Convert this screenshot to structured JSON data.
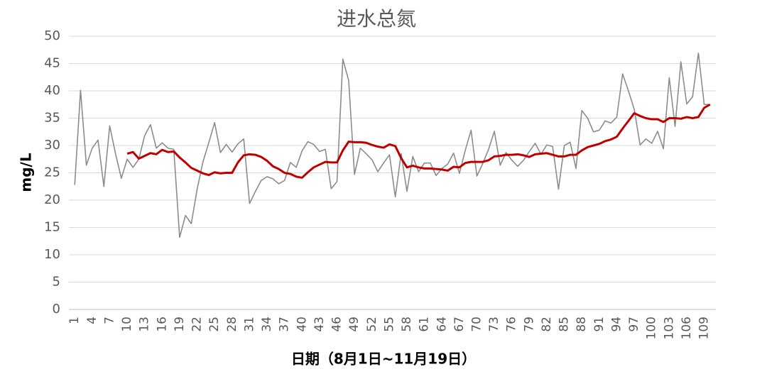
{
  "chart_data": {
    "type": "line",
    "title": "进水总氮",
    "xlabel": "日期（8月1日~11月19日）",
    "ylabel": "mg/L",
    "x": [
      1,
      2,
      3,
      4,
      5,
      6,
      7,
      8,
      9,
      10,
      11,
      12,
      13,
      14,
      15,
      16,
      17,
      18,
      19,
      20,
      21,
      22,
      23,
      24,
      25,
      26,
      27,
      28,
      29,
      30,
      31,
      32,
      33,
      34,
      35,
      36,
      37,
      38,
      39,
      40,
      41,
      42,
      43,
      44,
      45,
      46,
      47,
      48,
      49,
      50,
      51,
      52,
      53,
      54,
      55,
      56,
      57,
      58,
      59,
      60,
      61,
      62,
      63,
      64,
      65,
      66,
      67,
      68,
      69,
      70,
      71,
      72,
      73,
      74,
      75,
      76,
      77,
      78,
      79,
      80,
      81,
      82,
      83,
      84,
      85,
      86,
      87,
      88,
      89,
      90,
      91,
      92,
      93,
      94,
      95,
      96,
      97,
      98,
      99,
      100,
      101,
      102,
      103,
      104,
      105,
      106,
      107,
      108,
      109,
      110
    ],
    "series": [
      {
        "color": "#8c8c8c",
        "width": 1.6,
        "values": [
          22.8,
          40.1,
          26.4,
          29.5,
          31,
          22.5,
          33.6,
          28.5,
          24,
          27.5,
          26,
          27.5,
          31.8,
          33.8,
          29.5,
          30.5,
          29.5,
          29.3,
          13.2,
          17.2,
          15.7,
          22,
          27,
          30.5,
          34.2,
          28.7,
          30.2,
          28.8,
          30.3,
          31.2,
          19.4,
          21.6,
          23.6,
          24.3,
          23.9,
          23,
          23.6,
          26.9,
          26,
          29,
          30.7,
          30.2,
          28.9,
          29.3,
          22.1,
          23.4,
          45.8,
          41.9,
          24.7,
          29.5,
          28.5,
          27.4,
          25.2,
          26.8,
          28.3,
          20.6,
          28.5,
          21.6,
          28,
          25.2,
          26.8,
          26.8,
          24.5,
          25.8,
          26.6,
          28.6,
          24.9,
          29.1,
          32.8,
          24.4,
          26.7,
          29.3,
          32.6,
          26.4,
          28.7,
          27.3,
          26.2,
          27.3,
          28.9,
          30.4,
          28.4,
          30.1,
          29.8,
          22,
          30,
          30.6,
          25.8,
          36.4,
          35,
          32.5,
          32.8,
          34.5,
          34.1,
          35.2,
          43.1,
          40,
          36.6,
          30.1,
          31.2,
          30.4,
          32.6,
          29.4,
          42.4,
          33.5,
          45.3,
          37.6,
          38.9,
          46.9,
          37.5,
          37.5
        ]
      },
      {
        "color": "#c00000",
        "width": 3,
        "values": [
          null,
          null,
          null,
          null,
          null,
          null,
          null,
          null,
          null,
          28.5,
          28.8,
          27.6,
          28.1,
          28.6,
          28.4,
          29.2,
          28.8,
          28.9,
          27.8,
          26.9,
          25.9,
          25.4,
          24.9,
          24.6,
          25.1,
          24.9,
          25,
          25,
          26.9,
          28.2,
          28.4,
          28.3,
          27.9,
          27.2,
          26.2,
          25.7,
          25,
          24.8,
          24.3,
          24.1,
          25.1,
          26,
          26.5,
          27,
          26.9,
          26.9,
          29.1,
          30.7,
          30.6,
          30.6,
          30.5,
          30.1,
          29.8,
          29.6,
          30.2,
          29.9,
          27.7,
          26,
          26.3,
          26,
          25.8,
          25.8,
          25.7,
          25.6,
          25.4,
          26.1,
          26,
          26.8,
          27,
          27,
          27,
          27.3,
          28,
          28.1,
          28.3,
          28.3,
          28.4,
          28.2,
          27.9,
          28.4,
          28.5,
          28.6,
          28.3,
          28,
          28,
          28.3,
          28.3,
          29.1,
          29.7,
          30,
          30.3,
          30.8,
          31.1,
          31.6,
          33.1,
          34.5,
          35.9,
          35.4,
          35,
          34.8,
          34.8,
          34.3,
          35,
          35,
          34.9,
          35.2,
          35,
          35.2,
          36.9,
          37.5
        ]
      }
    ],
    "xlim": [
      0,
      111
    ],
    "xticks": [
      1,
      4,
      7,
      10,
      13,
      16,
      19,
      22,
      25,
      28,
      31,
      34,
      37,
      40,
      43,
      46,
      49,
      52,
      55,
      58,
      61,
      64,
      67,
      70,
      73,
      76,
      79,
      82,
      85,
      88,
      91,
      94,
      97,
      100,
      103,
      106,
      109
    ],
    "ylim": [
      0,
      50
    ],
    "yticks": [
      0,
      5,
      10,
      15,
      20,
      25,
      30,
      35,
      40,
      45,
      50
    ],
    "grid": true
  }
}
